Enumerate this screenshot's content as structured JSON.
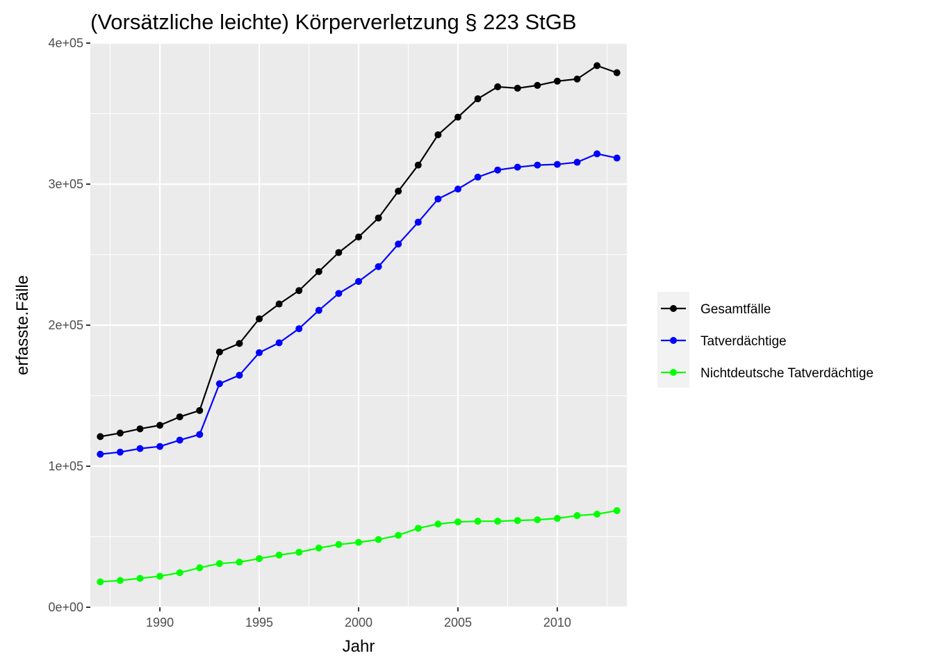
{
  "chart_data": {
    "type": "line",
    "title": "(Vorsätzliche leichte) Körperverletzung § 223 StGB",
    "xlabel": "Jahr",
    "ylabel": "erfasste.Fälle",
    "xlim": [
      1986.5,
      2013.5
    ],
    "ylim": [
      0,
      400000
    ],
    "x_ticks": [
      1990,
      1995,
      2000,
      2005,
      2010
    ],
    "y_ticks": [
      0,
      100000,
      200000,
      300000,
      400000
    ],
    "y_tick_labels": [
      "0e+00",
      "1e+05",
      "2e+05",
      "3e+05",
      "4e+05"
    ],
    "grid": true,
    "legend_position": "right",
    "x": [
      1987,
      1988,
      1989,
      1990,
      1991,
      1992,
      1993,
      1994,
      1995,
      1996,
      1997,
      1998,
      1999,
      2000,
      2001,
      2002,
      2003,
      2004,
      2005,
      2006,
      2007,
      2008,
      2009,
      2010,
      2011,
      2012,
      2013
    ],
    "series": [
      {
        "name": "Gesamtfälle",
        "color": "#000000",
        "values": [
          121000,
          123500,
          126500,
          129000,
          135000,
          139500,
          181000,
          187000,
          204500,
          215000,
          224500,
          238000,
          251500,
          262500,
          276000,
          295000,
          313500,
          335000,
          347500,
          360500,
          369000,
          368000,
          370000,
          373000,
          374500,
          384000,
          379000
        ]
      },
      {
        "name": "Tatverdächtige",
        "color": "#0000ff",
        "values": [
          108500,
          110000,
          112500,
          114000,
          118500,
          122500,
          158500,
          164500,
          180500,
          187500,
          197500,
          210500,
          222500,
          231000,
          241500,
          257500,
          273000,
          289500,
          296500,
          305000,
          310000,
          312000,
          313500,
          314000,
          315500,
          321500,
          318500
        ]
      },
      {
        "name": "Nichtdeutsche Tatverdächtige",
        "color": "#00ff00",
        "values": [
          18000,
          19000,
          20500,
          22000,
          24500,
          28000,
          31000,
          32000,
          34500,
          37000,
          39000,
          42000,
          44500,
          46000,
          48000,
          51000,
          56000,
          59000,
          60500,
          61000,
          61000,
          61500,
          62000,
          63000,
          65000,
          66000,
          68500
        ]
      }
    ]
  }
}
